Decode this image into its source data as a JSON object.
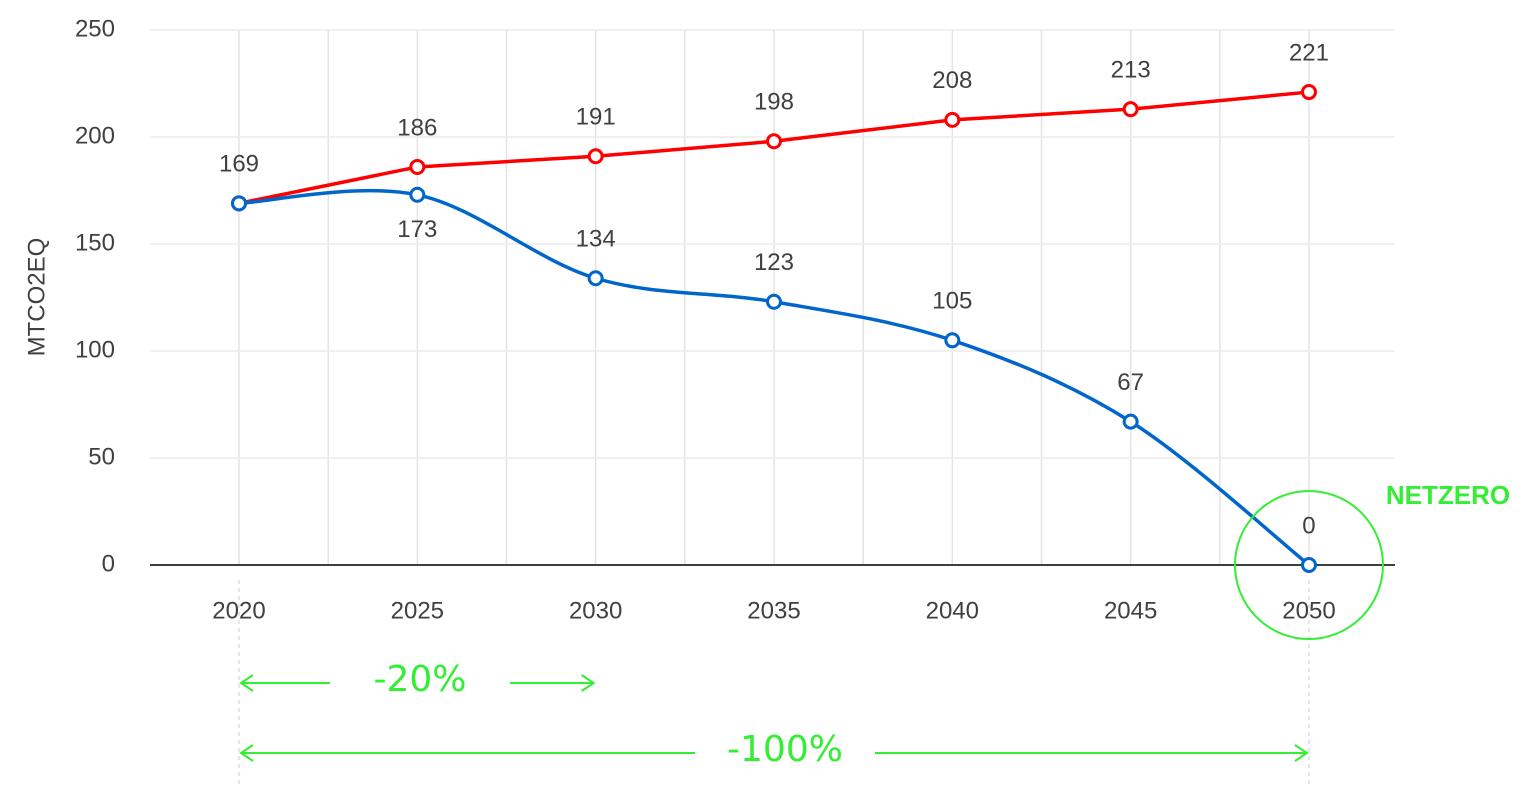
{
  "chart_data": {
    "type": "line",
    "y_label": "MTCO2EQ",
    "categories": [
      "2020",
      "2025",
      "2030",
      "2035",
      "2040",
      "2045",
      "2050"
    ],
    "series": [
      {
        "color": "#ff0000",
        "smooth": false,
        "values": [
          169,
          186,
          191,
          198,
          208,
          213,
          221
        ]
      },
      {
        "color": "#0066cc",
        "smooth": true,
        "values": [
          169,
          173,
          134,
          123,
          105,
          67,
          0
        ],
        "value_labels": [
          null,
          "173",
          "134",
          "123",
          "105",
          "67",
          "0"
        ]
      }
    ],
    "ylim": [
      0,
      250
    ],
    "yticks": [
      0,
      50,
      100,
      150,
      200,
      250
    ],
    "grid": true,
    "annotations": {
      "netzero": "NETZERO",
      "short_term": "-20%",
      "long_term": "-100%"
    }
  }
}
